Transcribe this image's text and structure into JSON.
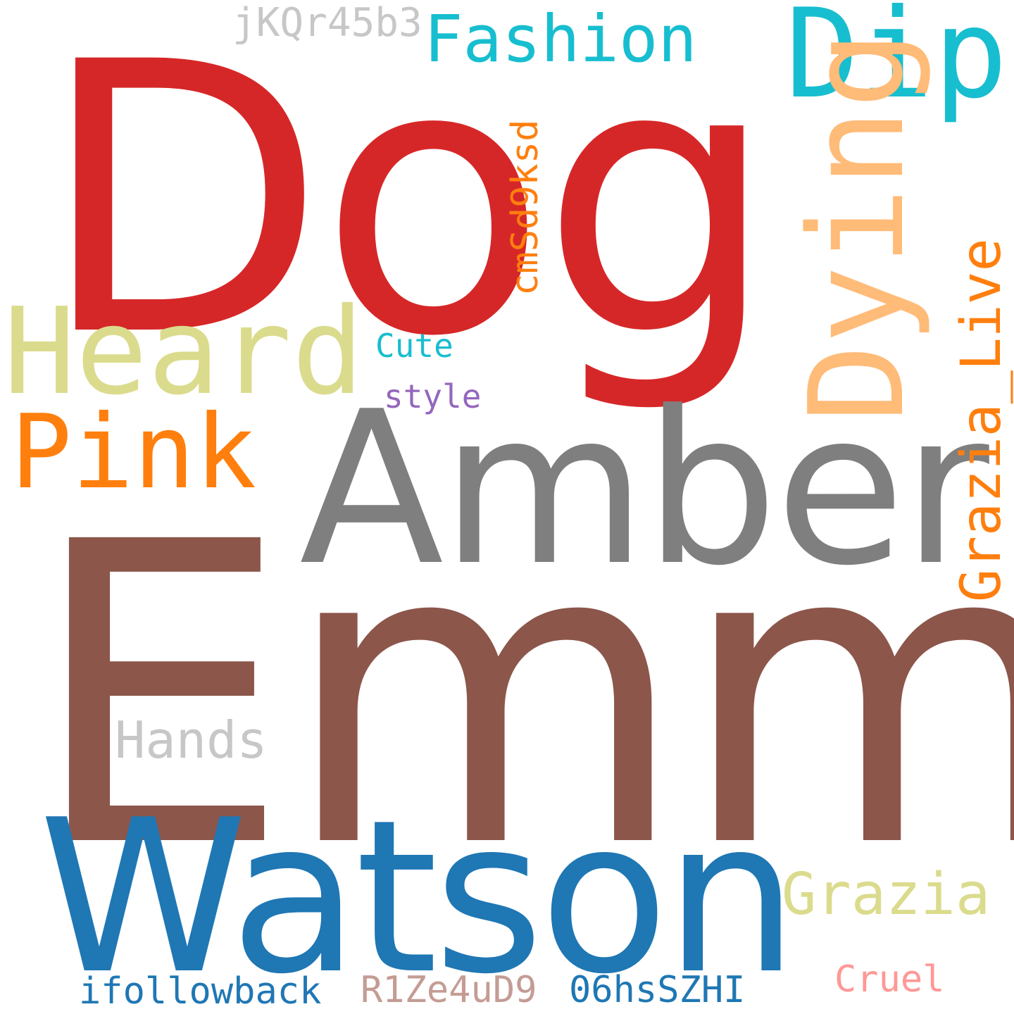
{
  "words": {
    "dog": {
      "text": "Dog",
      "color": "#d62728"
    },
    "emma": {
      "text": "Emma",
      "color": "#8c564b"
    },
    "watson": {
      "text": "Watson",
      "color": "#1f77b4"
    },
    "amber": {
      "text": "Amber",
      "color": "#7f7f7f"
    },
    "heard": {
      "text": "Heard",
      "color": "#dbdb8d"
    },
    "pink": {
      "text": "Pink",
      "color": "#ff7f0e"
    },
    "fashion": {
      "text": "Fashion",
      "color": "#17becf"
    },
    "dip": {
      "text": "Dip",
      "color": "#17becf"
    },
    "jkqr": {
      "text": "jKQr45b3",
      "color": "#c7c7c7"
    },
    "dying": {
      "text": "Dying",
      "color": "#ffbb78"
    },
    "cmsd": {
      "text": "cmSd9ksd",
      "color": "#ff7f0e"
    },
    "grazia_live": {
      "text": "Grazia_Live",
      "color": "#ff7f0e"
    },
    "cute": {
      "text": "Cute",
      "color": "#17becf"
    },
    "style": {
      "text": "style",
      "color": "#9467bd"
    },
    "hands": {
      "text": "Hands",
      "color": "#c7c7c7"
    },
    "grazia": {
      "text": "Grazia",
      "color": "#dbdb8d"
    },
    "cruel": {
      "text": "Cruel",
      "color": "#ff9896"
    },
    "ifollowback": {
      "text": "ifollowback",
      "color": "#1f77b4"
    },
    "r1ze": {
      "text": "R1Ze4uD9",
      "color": "#c49c94"
    },
    "o6hs": {
      "text": "06hsSZHI",
      "color": "#1f77b4"
    }
  }
}
